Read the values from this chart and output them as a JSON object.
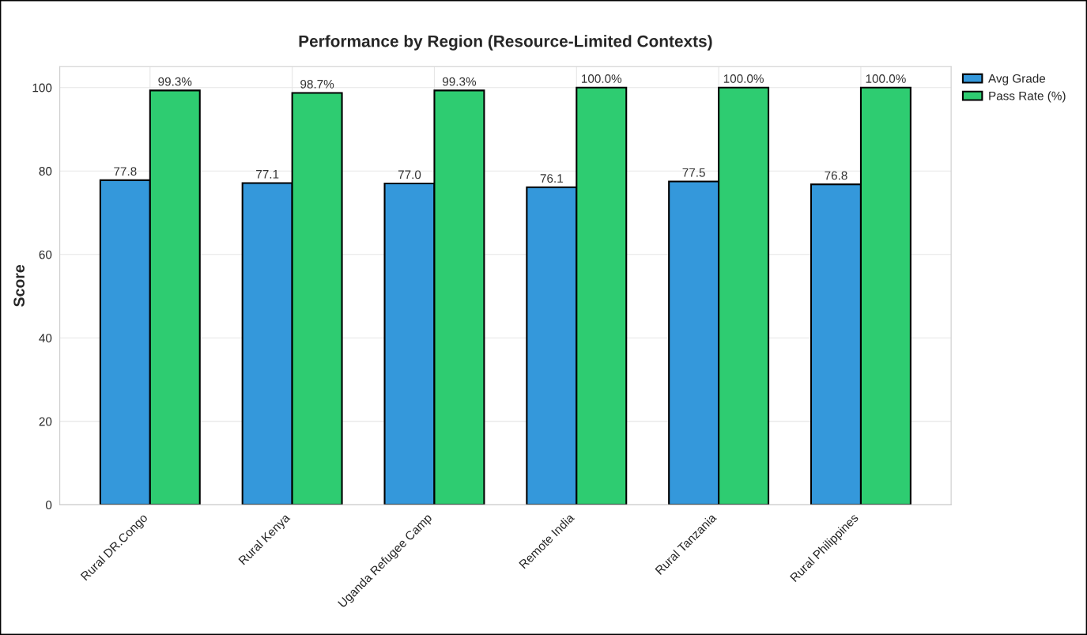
{
  "chart_data": {
    "type": "bar",
    "title": "Performance by Region (Resource-Limited Contexts)",
    "ylabel": "Score",
    "categories": [
      "Rural DR.Congo",
      "Rural Kenya",
      "Uganda Refugee Camp",
      "Remote India",
      "Rural Tanzania",
      "Rural Philippines"
    ],
    "series": [
      {
        "name": "Avg Grade",
        "color": "#3498db",
        "values": [
          77.8,
          77.1,
          77.0,
          76.1,
          77.5,
          76.8
        ],
        "value_labels": [
          "77.8",
          "77.1",
          "77.0",
          "76.1",
          "77.5",
          "76.8"
        ]
      },
      {
        "name": "Pass Rate (%)",
        "color": "#2ecc71",
        "values": [
          99.3,
          98.7,
          99.3,
          100.0,
          100.0,
          100.0
        ],
        "value_labels": [
          "99.3%",
          "98.7%",
          "99.3%",
          "100.0%",
          "100.0%",
          "100.0%"
        ]
      }
    ],
    "ylim": [
      0,
      105
    ],
    "yticks": [
      0,
      20,
      40,
      60,
      80,
      100
    ],
    "grid": true,
    "legend": "top right"
  }
}
